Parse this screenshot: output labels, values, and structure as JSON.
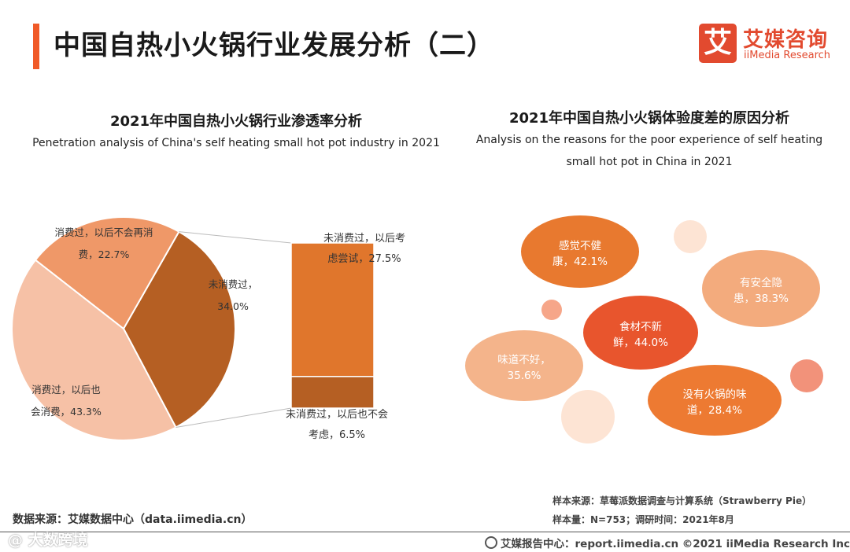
{
  "header": {
    "title": "中国自热小火锅行业发展分析（二）",
    "logo_mark": "艾",
    "logo_cn": "艾媒咨询",
    "logo_en": "iiMedia Research",
    "accent_color": "#f05a28"
  },
  "chart_data": [
    {
      "type": "pie",
      "title": "2021年中国自热小火锅行业渗透率分析",
      "subtitle": "Penetration analysis of China's self heating small hot pot industry in 2021",
      "slices": [
        {
          "label_l1": "未消费过，",
          "label_l2": "34.0%",
          "value": 34.0,
          "color": "#b55f23"
        },
        {
          "label_l1": "消费过，以后也",
          "label_l2": "会消费，43.3%",
          "value": 43.3,
          "color": "#f6c1a6"
        },
        {
          "label_l1": "消费过，以后不会再消",
          "label_l2": "费，22.7%",
          "value": 22.7,
          "color": "#ef9868"
        }
      ],
      "breakdown_of": "未消费过，34.0%",
      "breakdown": [
        {
          "label_l1": "未消费过，以后考",
          "label_l2": "虑尝试，27.5%",
          "value": 27.5,
          "color": "#e0762c"
        },
        {
          "label_l1": "未消费过，以后也不会",
          "label_l2": "考虑，6.5%",
          "value": 6.5,
          "color": "#b55f23"
        }
      ]
    },
    {
      "type": "bubble",
      "title": "2021年中国自热小火锅体验度差的原因分析",
      "subtitle": "Analysis on the reasons for the poor experience of self heating small hot pot in China in 2021",
      "bubbles": [
        {
          "label_l1": "食材不新",
          "label_l2": "鲜，44.0%",
          "value": 44.0,
          "color": "#e8552d"
        },
        {
          "label_l1": "感觉不健",
          "label_l2": "康，42.1%",
          "value": 42.1,
          "color": "#e8792f"
        },
        {
          "label_l1": "有安全隐",
          "label_l2": "患，38.3%",
          "value": 38.3,
          "color": "#f3ab7d"
        },
        {
          "label_l1": "味道不好，",
          "label_l2": "35.6%",
          "value": 35.6,
          "color": "#f4b48b"
        },
        {
          "label_l1": "没有火锅的味",
          "label_l2": "道，28.4%",
          "value": 28.4,
          "color": "#ed7a32"
        }
      ],
      "decor_colors": [
        "#fde4d4",
        "#f6a689",
        "#f2927a",
        "#fde4d4"
      ]
    }
  ],
  "footer": {
    "data_source": "数据来源：艾媒数据中心（data.iimedia.cn）",
    "sample_source": "样本来源：草莓派数据调查与计算系统（Strawberry Pie）",
    "sample_info": "样本量：N=753；调研时间：2021年8月",
    "report_center": "艾媒报告中心：report.iimedia.cn   ©2021  iiMedia Research  Inc",
    "watermark": "@ 大数跨境"
  }
}
